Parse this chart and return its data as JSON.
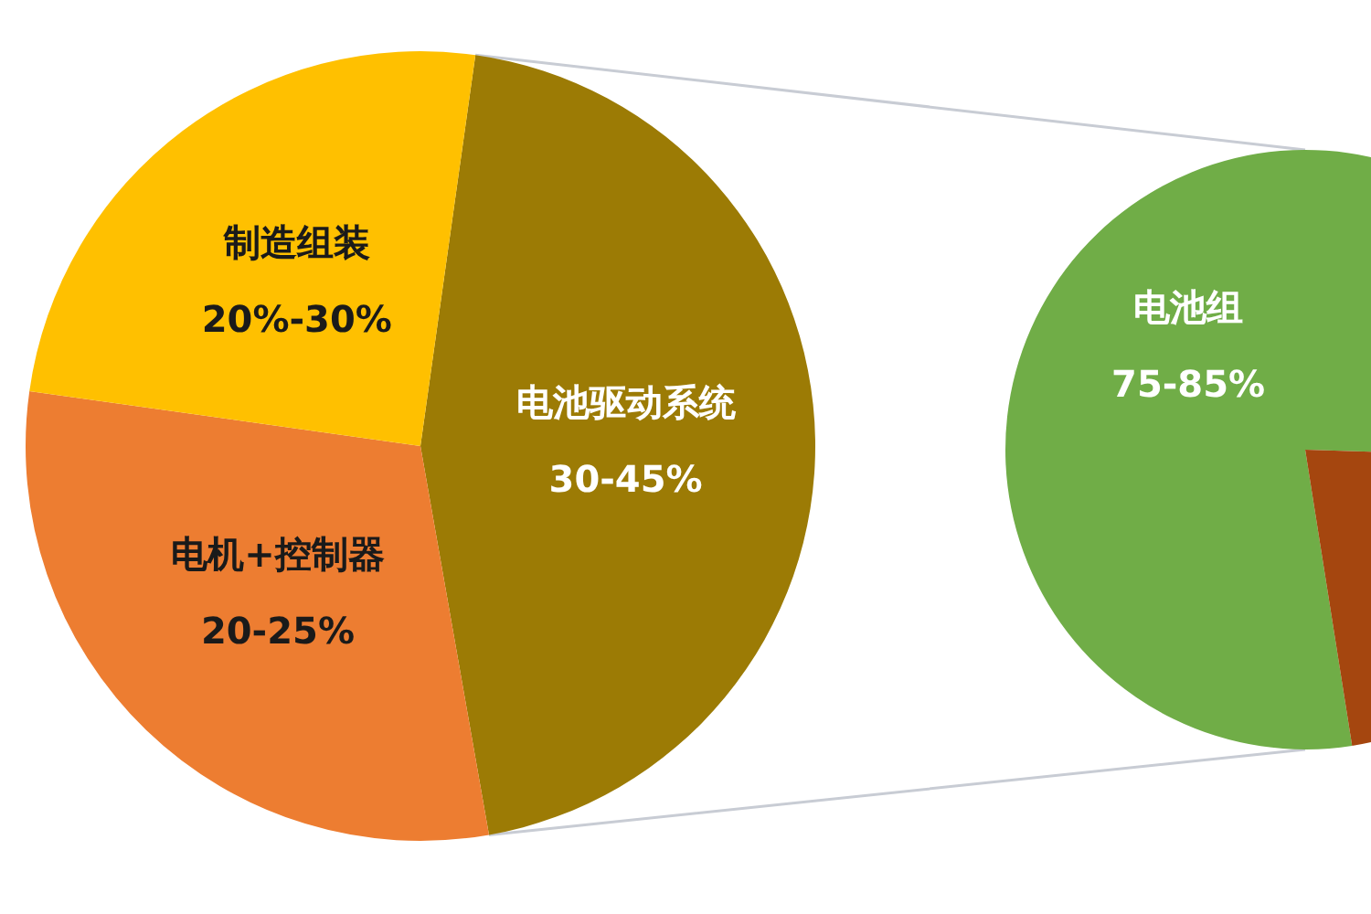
{
  "chart_data": [
    {
      "type": "pie",
      "categories": [
        "电池驱动系统",
        "电机+控制器",
        "制造组装"
      ],
      "values": [
        45,
        30,
        25
      ],
      "colors": [
        "#9c7b05",
        "#ed7d31",
        "#ffc000"
      ],
      "annotations": [
        "30-45%",
        "20-25%",
        "20%-30%"
      ]
    },
    {
      "type": "pie",
      "categories": [
        "电池组",
        null
      ],
      "values": [
        78,
        22
      ],
      "colors": [
        "#70ad47",
        "#a5460f"
      ],
      "annotations": [
        "75-85%"
      ]
    }
  ]
}
